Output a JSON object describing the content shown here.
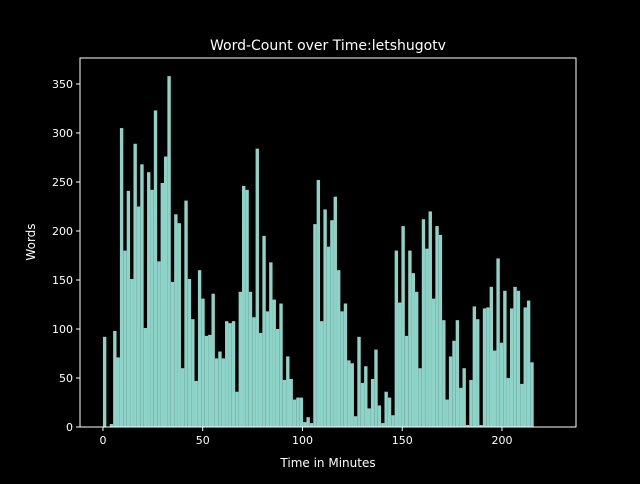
{
  "chart_data": {
    "type": "bar",
    "title": "Word-Count over Time:letshugotv",
    "xlabel": "Time in Minutes",
    "ylabel": "Words",
    "xlim": [
      -11.5,
      237.1
    ],
    "ylim": [
      0,
      376.5
    ],
    "xticks": [
      0,
      50,
      100,
      150,
      200
    ],
    "yticks": [
      0,
      50,
      100,
      150,
      200,
      250,
      300,
      350
    ],
    "bar_color": "#8dd3c7",
    "background": "#000000",
    "grid": false,
    "bin_width": 1.7,
    "values": [
      92,
      0,
      3,
      98,
      71,
      305,
      180,
      241,
      151,
      289,
      225,
      268,
      101,
      260,
      242,
      323,
      169,
      249,
      276,
      358,
      148,
      217,
      208,
      60,
      231,
      151,
      110,
      47,
      160,
      131,
      93,
      94,
      136,
      70,
      77,
      70,
      108,
      106,
      108,
      36,
      138,
      246,
      242,
      138,
      112,
      284,
      96,
      195,
      118,
      168,
      130,
      100,
      126,
      48,
      72,
      49,
      28,
      30,
      30,
      5,
      10,
      4,
      207,
      252,
      108,
      222,
      184,
      211,
      235,
      160,
      118,
      126,
      68,
      65,
      11,
      92,
      45,
      62,
      19,
      49,
      79,
      22,
      4,
      36,
      30,
      12,
      180,
      127,
      205,
      93,
      180,
      157,
      138,
      60,
      212,
      182,
      220,
      131,
      205,
      196,
      109,
      28,
      72,
      88,
      109,
      40,
      60,
      2,
      48,
      123,
      110,
      2,
      121,
      122,
      143,
      78,
      172,
      86,
      139,
      50,
      121,
      143,
      139,
      44,
      122,
      129,
      66
    ]
  }
}
